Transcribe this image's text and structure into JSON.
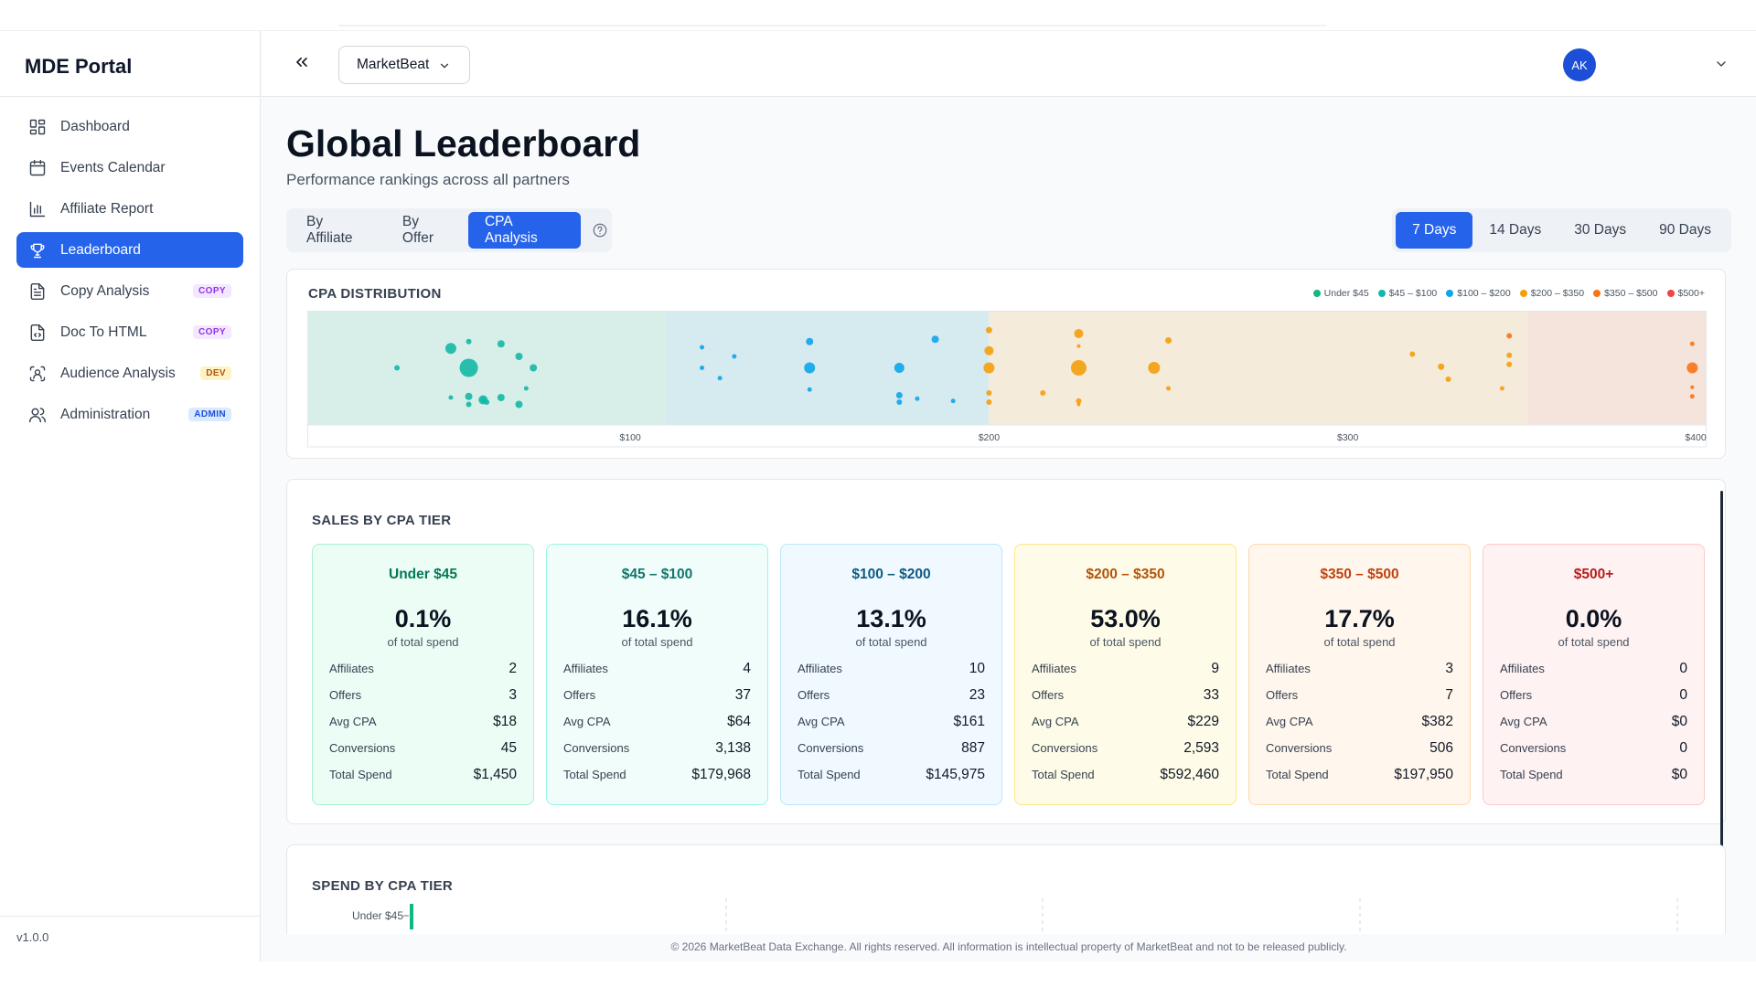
{
  "app": {
    "brand": "MDE Portal",
    "version": "v1.0.0"
  },
  "sidebar": {
    "items": [
      {
        "label": "Dashboard",
        "icon": "grid-icon",
        "badge": ""
      },
      {
        "label": "Events Calendar",
        "icon": "calendar-icon",
        "badge": ""
      },
      {
        "label": "Affiliate Report",
        "icon": "bar-chart-icon",
        "badge": ""
      },
      {
        "label": "Leaderboard",
        "icon": "trophy-icon",
        "badge": "",
        "active": true
      },
      {
        "label": "Copy Analysis",
        "icon": "document-icon",
        "badge": "COPY"
      },
      {
        "label": "Doc To HTML",
        "icon": "file-code-icon",
        "badge": "COPY"
      },
      {
        "label": "Audience Analysis",
        "icon": "scan-user-icon",
        "badge": "DEV"
      },
      {
        "label": "Administration",
        "icon": "users-icon",
        "badge": "ADMIN"
      }
    ]
  },
  "header": {
    "org": "MarketBeat",
    "avatar": "AK"
  },
  "page": {
    "title": "Global Leaderboard",
    "subtitle": "Performance rankings across all partners"
  },
  "tabs": [
    {
      "label": "By Affiliate",
      "active": false
    },
    {
      "label": "By Offer",
      "active": false
    },
    {
      "label": "CPA Analysis",
      "active": true
    }
  ],
  "ranges": [
    {
      "label": "7 Days",
      "active": true
    },
    {
      "label": "14 Days",
      "active": false
    },
    {
      "label": "30 Days",
      "active": false
    },
    {
      "label": "90 Days",
      "active": false
    }
  ],
  "distribution": {
    "title": "CPA DISTRIBUTION",
    "legend": [
      {
        "label": "Under $45",
        "color": "#10b981"
      },
      {
        "label": "$45 – $100",
        "color": "#14b8a6"
      },
      {
        "label": "$100 – $200",
        "color": "#0ea5e9"
      },
      {
        "label": "$200 – $350",
        "color": "#f59e0b"
      },
      {
        "label": "$350 – $500",
        "color": "#f97316"
      },
      {
        "label": "$500+",
        "color": "#ef4444"
      }
    ]
  },
  "chart_data": {
    "type": "scatter",
    "title": "CPA DISTRIBUTION",
    "xlim": [
      10,
      400
    ],
    "x_ticks": [
      "$100",
      "$200",
      "$300",
      "$400"
    ],
    "x_tick_values": [
      100,
      200,
      300,
      400
    ],
    "y_axis": "none (jittered)",
    "points": [
      {
        "x": 50,
        "y": 0.33,
        "r": 6,
        "tier": 1
      },
      {
        "x": 55,
        "y": 0.5,
        "r": 10,
        "tier": 1
      },
      {
        "x": 55,
        "y": 0.75,
        "r": 4,
        "tier": 1
      },
      {
        "x": 55,
        "y": 0.82,
        "r": 3,
        "tier": 1
      },
      {
        "x": 55,
        "y": 0.27,
        "r": 3,
        "tier": 1
      },
      {
        "x": 59,
        "y": 0.78,
        "r": 5,
        "tier": 1
      },
      {
        "x": 59,
        "y": 0.78,
        "r": 3,
        "tier": 1
      },
      {
        "x": 64,
        "y": 0.29,
        "r": 4,
        "tier": 1
      },
      {
        "x": 64,
        "y": 0.76,
        "r": 4,
        "tier": 1
      },
      {
        "x": 60,
        "y": 0.8,
        "r": 3,
        "tier": 1
      },
      {
        "x": 69,
        "y": 0.4,
        "r": 4,
        "tier": 1
      },
      {
        "x": 69,
        "y": 0.82,
        "r": 4,
        "tier": 1
      },
      {
        "x": 71,
        "y": 0.68,
        "r": 2.5,
        "tier": 1
      },
      {
        "x": 73,
        "y": 0.5,
        "r": 4,
        "tier": 1
      },
      {
        "x": 35,
        "y": 0.5,
        "r": 3,
        "tier": 1
      },
      {
        "x": 50,
        "y": 0.76,
        "r": 2.5,
        "tier": 1
      },
      {
        "x": 120,
        "y": 0.32,
        "r": 2.5,
        "tier": 2
      },
      {
        "x": 120,
        "y": 0.5,
        "r": 2.5,
        "tier": 2
      },
      {
        "x": 125,
        "y": 0.59,
        "r": 2.5,
        "tier": 2
      },
      {
        "x": 129,
        "y": 0.4,
        "r": 2.5,
        "tier": 2
      },
      {
        "x": 150,
        "y": 0.27,
        "r": 4,
        "tier": 2
      },
      {
        "x": 150,
        "y": 0.5,
        "r": 6,
        "tier": 2
      },
      {
        "x": 150,
        "y": 0.69,
        "r": 2.5,
        "tier": 2
      },
      {
        "x": 175,
        "y": 0.5,
        "r": 5.5,
        "tier": 2
      },
      {
        "x": 175,
        "y": 0.74,
        "r": 3.5,
        "tier": 2
      },
      {
        "x": 175,
        "y": 0.8,
        "r": 3,
        "tier": 2
      },
      {
        "x": 180,
        "y": 0.77,
        "r": 2.5,
        "tier": 2
      },
      {
        "x": 185,
        "y": 0.25,
        "r": 4,
        "tier": 2
      },
      {
        "x": 190,
        "y": 0.79,
        "r": 2.5,
        "tier": 2
      },
      {
        "x": 200,
        "y": 0.17,
        "r": 3.5,
        "tier": 3
      },
      {
        "x": 200,
        "y": 0.35,
        "r": 5,
        "tier": 3
      },
      {
        "x": 200,
        "y": 0.5,
        "r": 6,
        "tier": 3
      },
      {
        "x": 200,
        "y": 0.72,
        "r": 3,
        "tier": 3
      },
      {
        "x": 200,
        "y": 0.8,
        "r": 3,
        "tier": 3
      },
      {
        "x": 215,
        "y": 0.72,
        "r": 3,
        "tier": 3
      },
      {
        "x": 225,
        "y": 0.2,
        "r": 5,
        "tier": 3
      },
      {
        "x": 225,
        "y": 0.31,
        "r": 2,
        "tier": 3
      },
      {
        "x": 225,
        "y": 0.5,
        "r": 8.5,
        "tier": 3
      },
      {
        "x": 225,
        "y": 0.79,
        "r": 3,
        "tier": 3
      },
      {
        "x": 225,
        "y": 0.82,
        "r": 2,
        "tier": 3
      },
      {
        "x": 246,
        "y": 0.5,
        "r": 6.5,
        "tier": 3
      },
      {
        "x": 250,
        "y": 0.26,
        "r": 3.5,
        "tier": 3
      },
      {
        "x": 250,
        "y": 0.68,
        "r": 2.5,
        "tier": 3
      },
      {
        "x": 318,
        "y": 0.38,
        "r": 3,
        "tier": 3
      },
      {
        "x": 326,
        "y": 0.49,
        "r": 3.5,
        "tier": 3
      },
      {
        "x": 328,
        "y": 0.6,
        "r": 3,
        "tier": 3
      },
      {
        "x": 343,
        "y": 0.68,
        "r": 2.5,
        "tier": 3
      },
      {
        "x": 345,
        "y": 0.39,
        "r": 3,
        "tier": 3
      },
      {
        "x": 345,
        "y": 0.47,
        "r": 3,
        "tier": 3
      },
      {
        "x": 345,
        "y": 0.22,
        "r": 3,
        "tier": 4
      },
      {
        "x": 396,
        "y": 0.29,
        "r": 2.5,
        "tier": 4
      },
      {
        "x": 396,
        "y": 0.5,
        "r": 6,
        "tier": 4
      },
      {
        "x": 396,
        "y": 0.67,
        "r": 2,
        "tier": 4
      },
      {
        "x": 396,
        "y": 0.75,
        "r": 2.5,
        "tier": 4
      }
    ],
    "bands": [
      {
        "from": 10,
        "to": 110,
        "color": "#d8efe9"
      },
      {
        "from": 110,
        "to": 200,
        "color": "#d6ebf0"
      },
      {
        "from": 200,
        "to": 350,
        "color": "#f4ebdb"
      },
      {
        "from": 350,
        "to": 400,
        "color": "#f4e4dc"
      }
    ]
  },
  "tiers": {
    "title": "SALES BY CPA TIER",
    "items": [
      {
        "name": "Under $45",
        "pct": "0.1%",
        "pct_label": "of total spend",
        "name_color": "#047857",
        "bg": "#ecfdf5",
        "border": "#a7f3d0",
        "stats": [
          {
            "label": "Affiliates",
            "value": "2"
          },
          {
            "label": "Offers",
            "value": "3"
          },
          {
            "label": "Avg CPA",
            "value": "$18"
          },
          {
            "label": "Conversions",
            "value": "45"
          },
          {
            "label": "Total Spend",
            "value": "$1,450"
          }
        ]
      },
      {
        "name": "$45 – $100",
        "pct": "16.1%",
        "pct_label": "of total spend",
        "name_color": "#0f766e",
        "bg": "#f0fdfa",
        "border": "#99f6e4",
        "stats": [
          {
            "label": "Affiliates",
            "value": "4"
          },
          {
            "label": "Offers",
            "value": "37"
          },
          {
            "label": "Avg CPA",
            "value": "$64"
          },
          {
            "label": "Conversions",
            "value": "3,138"
          },
          {
            "label": "Total Spend",
            "value": "$179,968"
          }
        ]
      },
      {
        "name": "$100 – $200",
        "pct": "13.1%",
        "pct_label": "of total spend",
        "name_color": "#0e5a82",
        "bg": "#f0f9ff",
        "border": "#bae6fd",
        "stats": [
          {
            "label": "Affiliates",
            "value": "10"
          },
          {
            "label": "Offers",
            "value": "23"
          },
          {
            "label": "Avg CPA",
            "value": "$161"
          },
          {
            "label": "Conversions",
            "value": "887"
          },
          {
            "label": "Total Spend",
            "value": "$145,975"
          }
        ]
      },
      {
        "name": "$200 – $350",
        "pct": "53.0%",
        "pct_label": "of total spend",
        "name_color": "#b45309",
        "bg": "#fefce8",
        "border": "#fde68a",
        "stats": [
          {
            "label": "Affiliates",
            "value": "9"
          },
          {
            "label": "Offers",
            "value": "33"
          },
          {
            "label": "Avg CPA",
            "value": "$229"
          },
          {
            "label": "Conversions",
            "value": "2,593"
          },
          {
            "label": "Total Spend",
            "value": "$592,460"
          }
        ]
      },
      {
        "name": "$350 – $500",
        "pct": "17.7%",
        "pct_label": "of total spend",
        "name_color": "#c2410c",
        "bg": "#fff7ed",
        "border": "#fed7aa",
        "stats": [
          {
            "label": "Affiliates",
            "value": "3"
          },
          {
            "label": "Offers",
            "value": "7"
          },
          {
            "label": "Avg CPA",
            "value": "$382"
          },
          {
            "label": "Conversions",
            "value": "506"
          },
          {
            "label": "Total Spend",
            "value": "$197,950"
          }
        ]
      },
      {
        "name": "$500+",
        "pct": "0.0%",
        "pct_label": "of total spend",
        "name_color": "#b91c1c",
        "bg": "#fef2f2",
        "border": "#fecaca",
        "stats": [
          {
            "label": "Affiliates",
            "value": "0"
          },
          {
            "label": "Offers",
            "value": "0"
          },
          {
            "label": "Avg CPA",
            "value": "$0"
          },
          {
            "label": "Conversions",
            "value": "0"
          },
          {
            "label": "Total Spend",
            "value": "$0"
          }
        ]
      }
    ]
  },
  "spend": {
    "title": "SPEND BY CPA TIER",
    "first_label": "Under $45",
    "first_color": "#10b981"
  },
  "footer": {
    "text": "© 2026 MarketBeat Data Exchange. All rights reserved. All information is intellectual property of MarketBeat and not to be released publicly."
  }
}
